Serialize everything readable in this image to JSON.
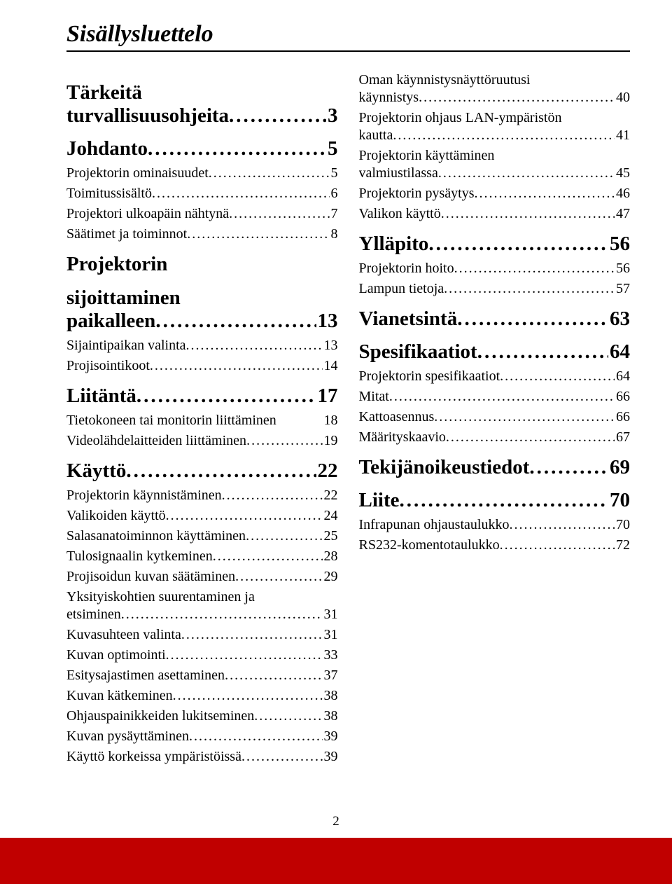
{
  "title": "Sisällysluettelo",
  "page_number": "2",
  "colors": {
    "footer_bar": "#c00000",
    "text": "#000000",
    "bg": "#ffffff"
  },
  "left": [
    {
      "level": "h1",
      "lines": [
        "Tärkeitä",
        "turvallisuusohjeita"
      ],
      "page": "3"
    },
    {
      "level": "h1",
      "text": "Johdanto",
      "page": "5"
    },
    {
      "level": "h2",
      "text": "Projektorin ominaisuudet",
      "page": "5"
    },
    {
      "level": "h2",
      "text": "Toimitussisältö",
      "page": "6"
    },
    {
      "level": "h2",
      "text": "Projektori ulkoapäin nähtynä",
      "page": "7"
    },
    {
      "level": "h2",
      "text": "Säätimet ja toiminnot",
      "page": "8"
    },
    {
      "level": "h1",
      "lines": [
        "Projektorin",
        "sijoittaminen",
        "paikalleen"
      ],
      "page": "13"
    },
    {
      "level": "h2",
      "text": "Sijaintipaikan valinta",
      "page": "13"
    },
    {
      "level": "h2",
      "text": "Projisointikoot",
      "page": "14"
    },
    {
      "level": "h1",
      "text": "Liitäntä",
      "page": "17"
    },
    {
      "level": "h2",
      "text": "Tietokoneen tai monitorin liittäminen",
      "page": "18",
      "nodots": true
    },
    {
      "level": "h2",
      "text": "Videolähdelaitteiden liittäminen",
      "page": "19"
    },
    {
      "level": "h1",
      "text": "Käyttö",
      "page": "22"
    },
    {
      "level": "h2",
      "text": "Projektorin käynnistäminen",
      "page": "22"
    },
    {
      "level": "h2",
      "text": "Valikoiden käyttö",
      "page": "24"
    },
    {
      "level": "h2",
      "text": "Salasanatoiminnon käyttäminen",
      "page": "25"
    },
    {
      "level": "h2",
      "text": "Tulosignaalin kytkeminen",
      "page": "28"
    },
    {
      "level": "h2",
      "text": "Projisoidun kuvan säätäminen",
      "page": "29"
    },
    {
      "level": "h2",
      "lines": [
        "Yksityiskohtien suurentaminen ja",
        "etsiminen"
      ],
      "page": "31"
    },
    {
      "level": "h2",
      "text": "Kuvasuhteen valinta",
      "page": "31"
    },
    {
      "level": "h2",
      "text": "Kuvan optimointi",
      "page": "33"
    },
    {
      "level": "h2",
      "text": "Esitysajastimen asettaminen",
      "page": "37"
    },
    {
      "level": "h2",
      "text": "Kuvan kätkeminen",
      "page": "38"
    },
    {
      "level": "h2",
      "text": "Ohjauspainikkeiden lukitseminen",
      "page": "38"
    },
    {
      "level": "h2",
      "text": "Kuvan pysäyttäminen",
      "page": "39"
    },
    {
      "level": "h2",
      "text": "Käyttö korkeissa ympäristöissä",
      "page": "39"
    }
  ],
  "right": [
    {
      "level": "h2",
      "lines": [
        "Oman käynnistysnäyttöruutusi",
        "käynnistys"
      ],
      "page": "40",
      "first": true
    },
    {
      "level": "h2",
      "lines": [
        "Projektorin ohjaus LAN-ympäristön",
        "kautta"
      ],
      "page": "41"
    },
    {
      "level": "h2",
      "lines": [
        "Projektorin käyttäminen",
        "valmiustilassa"
      ],
      "page": "45"
    },
    {
      "level": "h2",
      "text": "Projektorin pysäytys",
      "page": "46"
    },
    {
      "level": "h2",
      "text": "Valikon käyttö",
      "page": "47"
    },
    {
      "level": "h1",
      "text": "Ylläpito",
      "page": "56"
    },
    {
      "level": "h2",
      "text": "Projektorin hoito",
      "page": "56"
    },
    {
      "level": "h2",
      "text": "Lampun tietoja",
      "page": "57"
    },
    {
      "level": "h1",
      "text": "Vianetsintä",
      "page": "63"
    },
    {
      "level": "h1",
      "text": "Spesifikaatiot",
      "page": "64"
    },
    {
      "level": "h2",
      "text": "Projektorin spesifikaatiot",
      "page": "64"
    },
    {
      "level": "h2",
      "text": "Mitat",
      "page": "66"
    },
    {
      "level": "h2",
      "text": "Kattoasennus",
      "page": "66"
    },
    {
      "level": "h2",
      "text": "Määrityskaavio",
      "page": "67"
    },
    {
      "level": "h1",
      "text": "Tekijänoikeustiedot",
      "page": "69"
    },
    {
      "level": "h1",
      "text": "Liite",
      "page": "70"
    },
    {
      "level": "h2",
      "text": "Infrapunan ohjaustaulukko",
      "page": "70"
    },
    {
      "level": "h2",
      "text": "RS232-komentotaulukko",
      "page": "72"
    }
  ]
}
